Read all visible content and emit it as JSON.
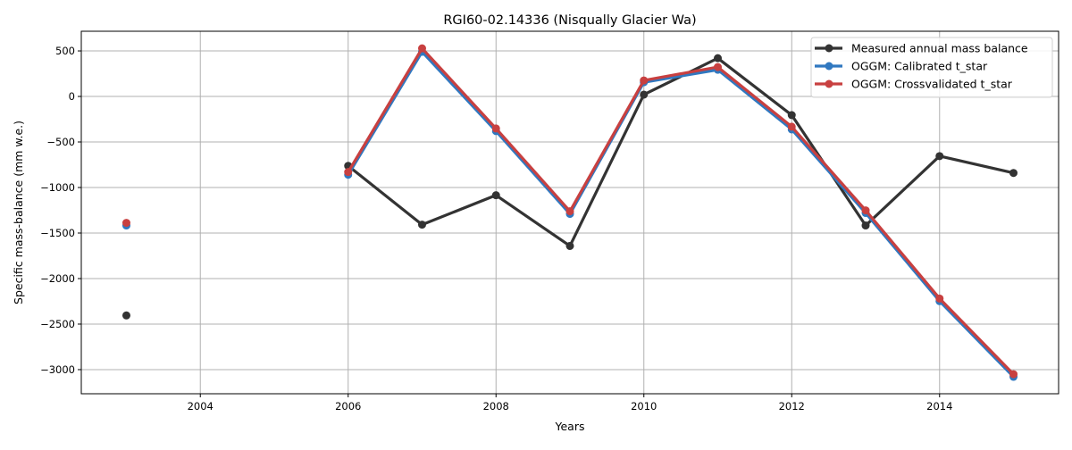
{
  "chart_data": {
    "type": "line",
    "title": "RGI60-02.14336 (Nisqually Glacier Wa)",
    "xlabel": "Years",
    "ylabel": "Specific mass-balance (mm w.e.)",
    "xlim": [
      2002.39,
      2015.61
    ],
    "ylim": [
      -3265,
      716
    ],
    "xticks": [
      2004,
      2006,
      2008,
      2010,
      2012,
      2014
    ],
    "yticks": [
      500,
      0,
      -500,
      -1000,
      -1500,
      -2000,
      -2500,
      -3000
    ],
    "grid": true,
    "legend_position": "top-right",
    "x": [
      2003,
      2004,
      2005,
      2006,
      2007,
      2008,
      2009,
      2010,
      2011,
      2012,
      2013,
      2014,
      2015
    ],
    "series": [
      {
        "name": "Measured annual mass balance",
        "color": "#333333",
        "values": [
          -2405,
          null,
          null,
          -762,
          -1408,
          -1085,
          -1642,
          20,
          420,
          -205,
          -1417,
          -655,
          -840
        ]
      },
      {
        "name": "OGGM: Calibrated t_star",
        "color": "#3078c0",
        "values": [
          -1417,
          null,
          null,
          -860,
          490,
          -381,
          -1290,
          156,
          293,
          -362,
          -1280,
          -2248,
          -3079
        ]
      },
      {
        "name": "OGGM: Crossvalidated t_star",
        "color": "#c84040",
        "values": [
          -1388,
          null,
          null,
          -830,
          528,
          -352,
          -1261,
          176,
          323,
          -332,
          -1251,
          -2219,
          -3050
        ]
      }
    ]
  }
}
